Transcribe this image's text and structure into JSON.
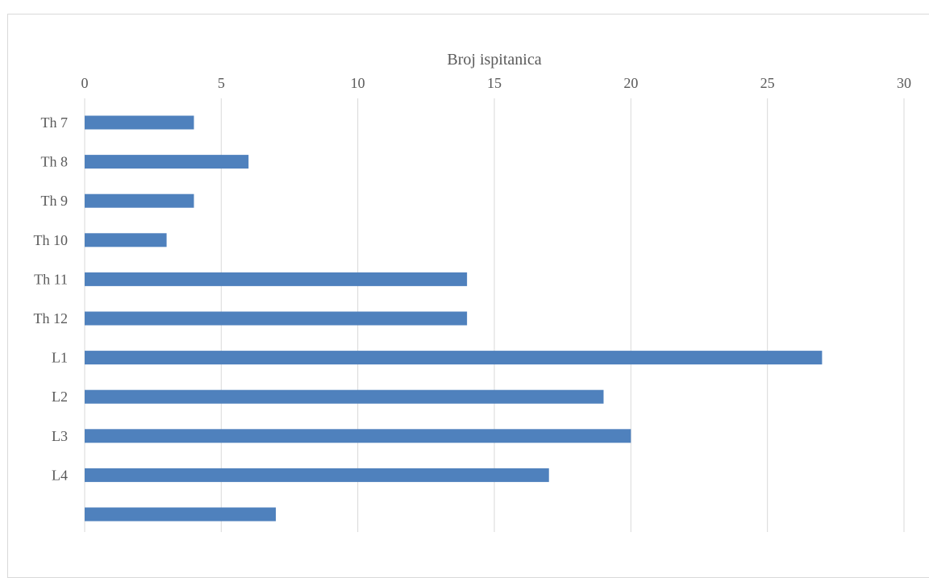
{
  "chart_data": {
    "type": "bar",
    "orientation": "horizontal",
    "title": "",
    "xlabel": "Broj ispitanica",
    "ylabel": "",
    "xaxis_position": "top",
    "xlim": [
      0,
      30
    ],
    "xticks": [
      0,
      5,
      10,
      15,
      20,
      25,
      30
    ],
    "grid": true,
    "legend": "none",
    "categories": [
      "Th 7",
      "Th 8",
      "Th 9",
      "Th 10",
      "Th 11",
      "Th 12",
      "L1",
      "L2",
      "L3",
      "L4",
      ""
    ],
    "values": [
      4,
      6,
      4,
      3,
      14,
      14,
      27,
      19,
      20,
      17,
      7
    ],
    "bar_color": "#4f81bd",
    "grid_color": "#d9d9d9"
  }
}
